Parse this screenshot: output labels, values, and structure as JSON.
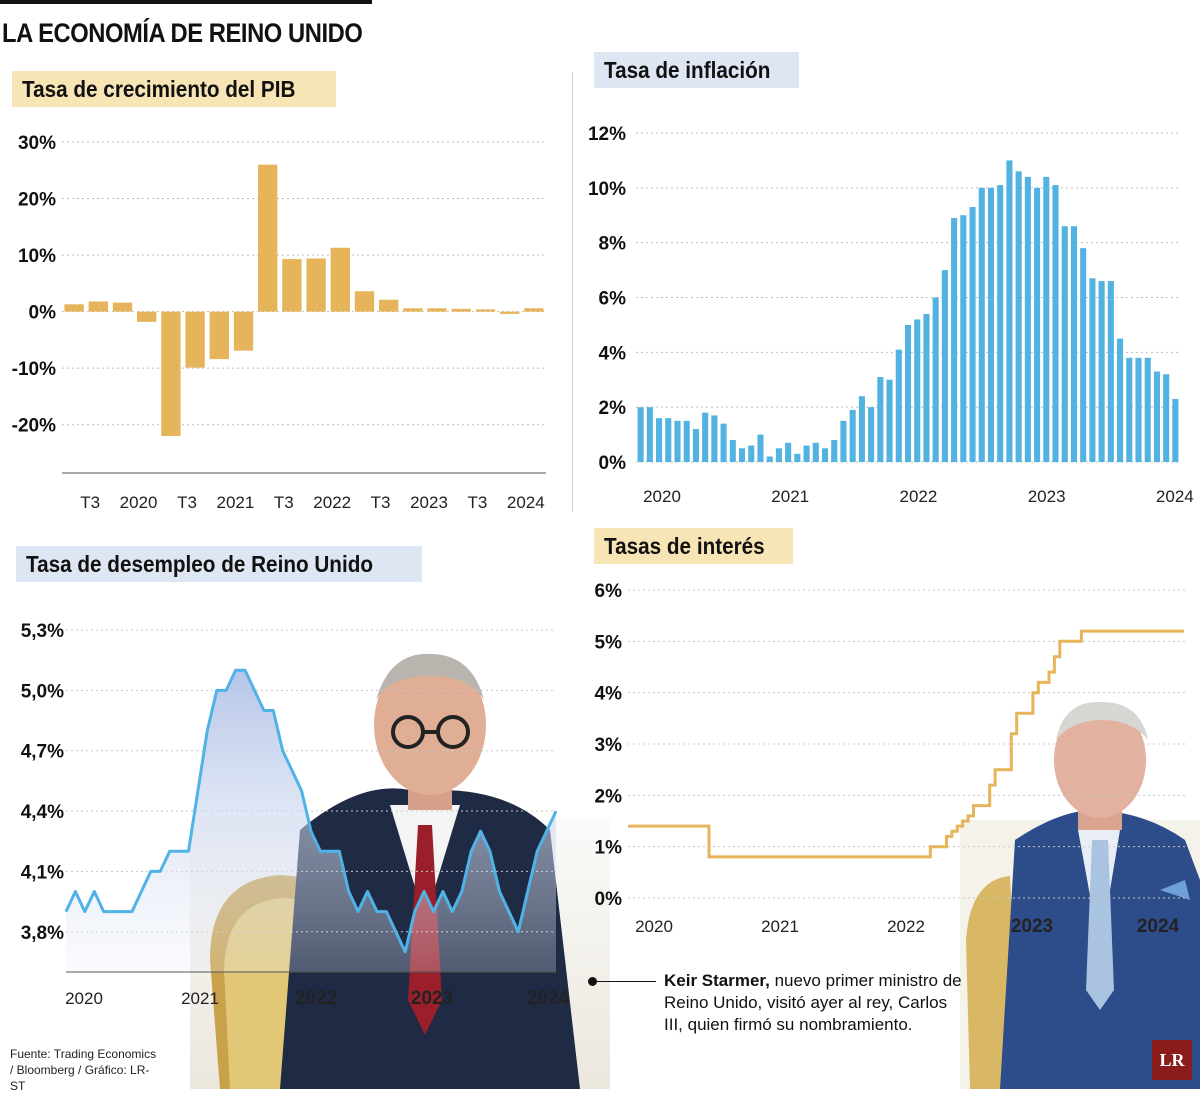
{
  "title": "LA ECONOMÍA DE REINO UNIDO",
  "caption": {
    "name": "Keir Starmer,",
    "text": " nuevo primer ministro de Reino Unido, visitó ayer al rey, Carlos III, quien firmó su nombramiento."
  },
  "source": "Fuente: Trading Economics / Bloomberg / Gráfico: LR-ST",
  "logo": "LR",
  "colors": {
    "gold": "#e6b45a",
    "blue": "#52b2e1",
    "line_blue": "#4fb3e6",
    "chip_gold": "#f8e5b6",
    "chip_blue": "#dfe6f3"
  },
  "chart_data": [
    {
      "id": "pib",
      "type": "bar",
      "title": "Tasa de crecimiento del PIB",
      "ylim": [
        -25,
        30
      ],
      "yticks": [
        "30%",
        "20%",
        "10%",
        "0%",
        "-10%",
        "-20%"
      ],
      "ytick_values": [
        30,
        20,
        10,
        0,
        -10,
        -20
      ],
      "xlabels": [
        "T3",
        "2020",
        "T3",
        "2021",
        "T3",
        "2022",
        "T3",
        "2023",
        "T3",
        "2024"
      ],
      "values": [
        1.3,
        1.8,
        1.6,
        -1.8,
        -22.0,
        -9.9,
        -8.4,
        -6.9,
        26.0,
        9.3,
        9.4,
        11.3,
        3.6,
        2.1,
        0.6,
        0.6,
        0.5,
        0.4,
        -0.4,
        0.6
      ]
    },
    {
      "id": "inflacion",
      "type": "bar",
      "title": "Tasa de inflación",
      "ylim": [
        0,
        12
      ],
      "yticks": [
        "12%",
        "10%",
        "8%",
        "6%",
        "4%",
        "2%",
        "0%"
      ],
      "ytick_values": [
        12,
        10,
        8,
        6,
        4,
        2,
        0
      ],
      "xlabels": [
        "2020",
        "2021",
        "2022",
        "2023",
        "2024"
      ],
      "values": [
        2.0,
        2.0,
        1.6,
        1.6,
        1.5,
        1.5,
        1.2,
        1.8,
        1.7,
        1.4,
        0.8,
        0.5,
        0.6,
        1.0,
        0.2,
        0.5,
        0.7,
        0.3,
        0.6,
        0.7,
        0.5,
        0.8,
        1.5,
        1.9,
        2.4,
        2.0,
        3.1,
        3.0,
        4.1,
        5.0,
        5.2,
        5.4,
        6.0,
        7.0,
        8.9,
        9.0,
        9.3,
        10.0,
        10.0,
        10.1,
        11.0,
        10.6,
        10.4,
        10.0,
        10.4,
        10.1,
        8.6,
        8.6,
        7.8,
        6.7,
        6.6,
        6.6,
        4.5,
        3.8,
        3.8,
        3.8,
        3.3,
        3.2,
        2.3
      ]
    },
    {
      "id": "desempleo",
      "type": "area",
      "title": "Tasa de desempleo de Reino Unido",
      "ylim": [
        3.6,
        5.3
      ],
      "yticks": [
        "5,3%",
        "5,0%",
        "4,7%",
        "4,4%",
        "4,1%",
        "3,8%"
      ],
      "ytick_values": [
        5.3,
        5.0,
        4.7,
        4.4,
        4.1,
        3.8
      ],
      "xlabels": [
        "2020",
        "2021",
        "2022",
        "2023",
        "2024"
      ],
      "values": [
        3.9,
        4.0,
        3.9,
        4.0,
        3.9,
        3.9,
        3.9,
        3.9,
        4.0,
        4.1,
        4.1,
        4.2,
        4.2,
        4.2,
        4.5,
        4.8,
        5.0,
        5.0,
        5.1,
        5.1,
        5.0,
        4.9,
        4.9,
        4.7,
        4.6,
        4.5,
        4.3,
        4.2,
        4.2,
        4.2,
        4.0,
        3.9,
        4.0,
        3.9,
        3.9,
        3.8,
        3.7,
        3.9,
        4.0,
        3.9,
        4.0,
        3.9,
        4.0,
        4.2,
        4.3,
        4.2,
        4.0,
        3.9,
        3.8,
        4.0,
        4.2,
        4.3,
        4.4
      ]
    },
    {
      "id": "interes",
      "type": "line",
      "title": "Tasas de interés",
      "ylim": [
        0,
        6
      ],
      "yticks": [
        "6%",
        "5%",
        "4%",
        "3%",
        "2%",
        "1%",
        "0%"
      ],
      "ytick_values": [
        6,
        5,
        4,
        3,
        2,
        1,
        0
      ],
      "xlabels": [
        "2020",
        "2021",
        "2022",
        "2023",
        "2024"
      ],
      "values": [
        1.4,
        1.4,
        1.4,
        1.4,
        1.4,
        1.4,
        1.4,
        1.4,
        1.4,
        1.4,
        1.4,
        1.4,
        1.4,
        1.4,
        1.4,
        0.8,
        0.8,
        0.8,
        0.8,
        0.8,
        0.8,
        0.8,
        0.8,
        0.8,
        0.8,
        0.8,
        0.8,
        0.8,
        0.8,
        0.8,
        0.8,
        0.8,
        0.8,
        0.8,
        0.8,
        0.8,
        0.8,
        0.8,
        0.8,
        0.8,
        0.8,
        0.8,
        0.8,
        0.8,
        0.8,
        0.8,
        0.8,
        0.8,
        0.8,
        0.8,
        0.8,
        0.8,
        0.8,
        0.8,
        0.8,
        0.8,
        1.0,
        1.0,
        1.0,
        1.2,
        1.3,
        1.4,
        1.5,
        1.6,
        1.8,
        1.8,
        1.8,
        2.2,
        2.5,
        2.5,
        2.5,
        3.2,
        3.6,
        3.6,
        3.6,
        4.0,
        4.2,
        4.2,
        4.4,
        4.7,
        5.0,
        5.0,
        5.0,
        5.0,
        5.2,
        5.2,
        5.2,
        5.2,
        5.2,
        5.2,
        5.2,
        5.2,
        5.2,
        5.2,
        5.2,
        5.2,
        5.2,
        5.2,
        5.2,
        5.2,
        5.2,
        5.2,
        5.2,
        5.2
      ]
    }
  ]
}
